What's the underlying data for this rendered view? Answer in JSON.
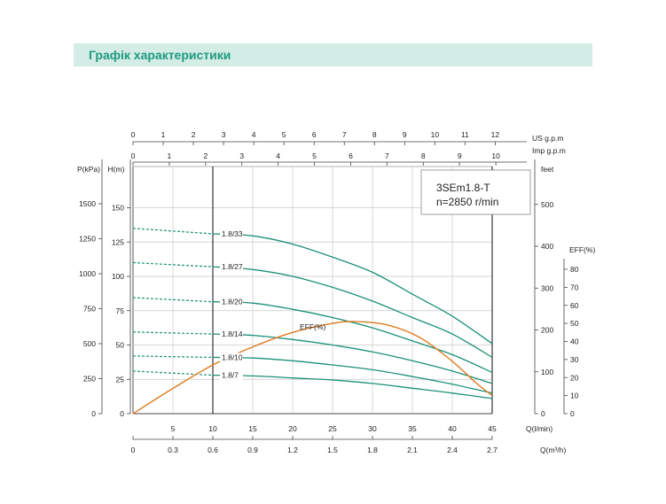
{
  "header": {
    "title": "Графік характеристики"
  },
  "chart_data": {
    "type": "line",
    "title": "",
    "model_label": {
      "model": "3SEm1.8-T",
      "speed": "n=2850 r/min"
    },
    "x_axes": {
      "q_lmin": {
        "label": "Q(l/min)",
        "ticks": [
          5,
          10,
          15,
          20,
          25,
          30,
          35,
          40,
          45
        ],
        "range": [
          0,
          45
        ]
      },
      "q_m3h": {
        "label": "Q(m³/h)",
        "ticks": [
          "0",
          "0.3",
          "0.6",
          "0.9",
          "1.2",
          "1.5",
          "1.8",
          "2.1",
          "2.4",
          "2.7"
        ],
        "range": [
          0,
          2.7
        ]
      },
      "us_gpm": {
        "label": "US  g.p.m",
        "ticks": [
          "0",
          "1",
          "2",
          "3",
          "4",
          "5",
          "6",
          "7",
          "8",
          "9",
          "10",
          "11",
          "12"
        ]
      },
      "imp_gpm": {
        "label": "Imp  g.p.m",
        "ticks": [
          "0",
          "1",
          "2",
          "3",
          "4",
          "5",
          "6",
          "7",
          "8",
          "9",
          "10"
        ]
      }
    },
    "y_axes": {
      "pressure": {
        "label": "P(kPa)",
        "ticks": [
          "0",
          "250",
          "500",
          "750",
          "1000",
          "1250",
          "1500"
        ]
      },
      "head": {
        "label": "H(m)",
        "ticks": [
          "0",
          "25",
          "50",
          "75",
          "100",
          "125",
          "150"
        ],
        "range": [
          0,
          180
        ]
      },
      "feet": {
        "label": "feet",
        "ticks": [
          "0",
          "100",
          "200",
          "300",
          "400",
          "500"
        ]
      },
      "eff": {
        "label": "EFF(%)",
        "ticks": [
          "0",
          "10",
          "20",
          "30",
          "40",
          "50",
          "60",
          "70",
          "80"
        ],
        "range": [
          0,
          80
        ]
      }
    },
    "series": [
      {
        "name": "1.8/33",
        "x": [
          10,
          15,
          20,
          25,
          30,
          35,
          40,
          45
        ],
        "y": [
          131,
          129.5,
          123.5,
          114,
          103,
          87,
          71,
          51
        ]
      },
      {
        "name": "1.8/27",
        "x": [
          10,
          15,
          20,
          25,
          30,
          35,
          40,
          45
        ],
        "y": [
          107,
          105,
          100,
          92,
          82,
          70,
          58,
          41
        ]
      },
      {
        "name": "1.8/20",
        "x": [
          10,
          15,
          20,
          25,
          30,
          35,
          40,
          45
        ],
        "y": [
          81.5,
          80.5,
          76,
          70,
          62.5,
          53,
          43,
          30
        ]
      },
      {
        "name": "1.8/14",
        "x": [
          10,
          15,
          20,
          25,
          30,
          35,
          40,
          45
        ],
        "y": [
          58,
          57,
          54,
          50,
          45,
          38.5,
          31,
          22
        ]
      },
      {
        "name": "1.8/10",
        "x": [
          10,
          15,
          20,
          25,
          30,
          35,
          40,
          45
        ],
        "y": [
          41,
          40.5,
          38.5,
          35.5,
          32,
          27,
          21.5,
          15
        ]
      },
      {
        "name": "1.8/7",
        "x": [
          10,
          15,
          20,
          25,
          30,
          35,
          40,
          45
        ],
        "y": [
          28,
          27.5,
          26,
          24.5,
          22,
          18.5,
          15,
          11
        ]
      }
    ],
    "series_dashed": [
      {
        "name": "1.8/33",
        "x": [
          0,
          10
        ],
        "y": [
          135,
          131
        ]
      },
      {
        "name": "1.8/27",
        "x": [
          0,
          10
        ],
        "y": [
          110,
          107
        ]
      },
      {
        "name": "1.8/20",
        "x": [
          0,
          10
        ],
        "y": [
          84.5,
          81.5
        ]
      },
      {
        "name": "1.8/14",
        "x": [
          0,
          10
        ],
        "y": [
          59.5,
          58
        ]
      },
      {
        "name": "1.8/10",
        "x": [
          0,
          10
        ],
        "y": [
          42,
          41
        ]
      },
      {
        "name": "1.8/7",
        "x": [
          0,
          10
        ],
        "y": [
          31,
          28
        ]
      }
    ],
    "efficiency": {
      "name": "EFF(%)",
      "x": [
        0,
        5,
        10,
        15,
        20,
        25,
        28,
        32,
        36,
        40,
        43,
        45
      ],
      "y": [
        0,
        14,
        27,
        37,
        45,
        50,
        51,
        49,
        42,
        29,
        17,
        10
      ]
    },
    "vertical_lines_x": [
      10,
      45
    ],
    "grid": true,
    "colors": {
      "curves": "#1a9078",
      "efficiency": "#e07a1f",
      "grid": "#c8c8c8",
      "title_text": "#1d9a7d",
      "title_bg": "#d4ece6"
    }
  }
}
